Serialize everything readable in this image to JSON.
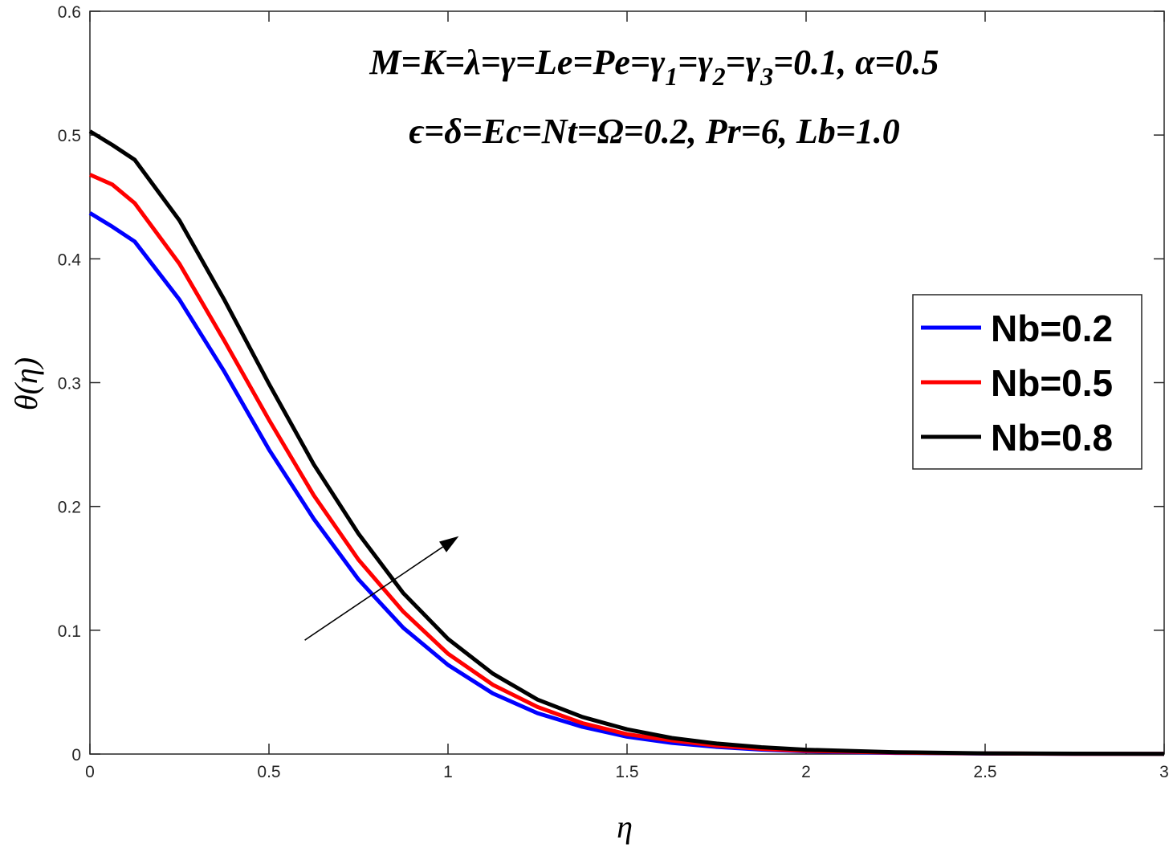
{
  "chart_data": {
    "type": "line",
    "title": "",
    "xlabel": "η",
    "ylabel": "θ(η)",
    "xlim": [
      0,
      3
    ],
    "ylim": [
      0,
      0.6
    ],
    "xticks": [
      0,
      0.5,
      1,
      1.5,
      2,
      2.5,
      3
    ],
    "xtick_labels": [
      "0",
      "0.5",
      "1",
      "1.5",
      "2",
      "2.5",
      "3"
    ],
    "yticks": [
      0,
      0.1,
      0.2,
      0.3,
      0.4,
      0.5,
      0.6
    ],
    "ytick_labels": [
      "0",
      "0.1",
      "0.2",
      "0.3",
      "0.4",
      "0.5",
      "0.6"
    ],
    "grid": false,
    "legend_position": "right",
    "annotations": {
      "params_line1": "M=K=λ=γ=Le=Pe=γ1=γ2=γ3=0.1, α=0.5",
      "params_line2": "ϵ=δ=Ec=Nt=Ω=0.2, Pr=6, Lb=1.0",
      "arrow": {
        "from": [
          0.6,
          0.092
        ],
        "to": [
          1.03,
          0.176
        ],
        "meaning": "increasing Nb"
      }
    },
    "x": [
      0,
      0.0625,
      0.125,
      0.25,
      0.375,
      0.5,
      0.625,
      0.75,
      0.875,
      1.0,
      1.125,
      1.25,
      1.375,
      1.5,
      1.625,
      1.75,
      1.875,
      2.0,
      2.25,
      2.5,
      2.75,
      3.0
    ],
    "series": [
      {
        "name": "Nb=0.2",
        "color": "#0000ff",
        "values": [
          0.437,
          0.426,
          0.414,
          0.367,
          0.309,
          0.246,
          0.19,
          0.141,
          0.102,
          0.072,
          0.049,
          0.033,
          0.022,
          0.014,
          0.009,
          0.0058,
          0.0036,
          0.0022,
          0.0009,
          0.0004,
          0.0002,
          0.0001
        ]
      },
      {
        "name": "Nb=0.5",
        "color": "#ff0000",
        "values": [
          0.468,
          0.46,
          0.445,
          0.396,
          0.334,
          0.27,
          0.209,
          0.157,
          0.115,
          0.081,
          0.056,
          0.038,
          0.025,
          0.016,
          0.011,
          0.0068,
          0.0042,
          0.0026,
          0.0011,
          0.0005,
          0.0002,
          0.0001
        ]
      },
      {
        "name": "Nb=0.8",
        "color": "#000000",
        "values": [
          0.503,
          0.492,
          0.48,
          0.431,
          0.367,
          0.299,
          0.234,
          0.178,
          0.13,
          0.093,
          0.065,
          0.044,
          0.03,
          0.02,
          0.013,
          0.0085,
          0.0055,
          0.0035,
          0.0015,
          0.0006,
          0.0003,
          0.0001
        ]
      }
    ]
  }
}
